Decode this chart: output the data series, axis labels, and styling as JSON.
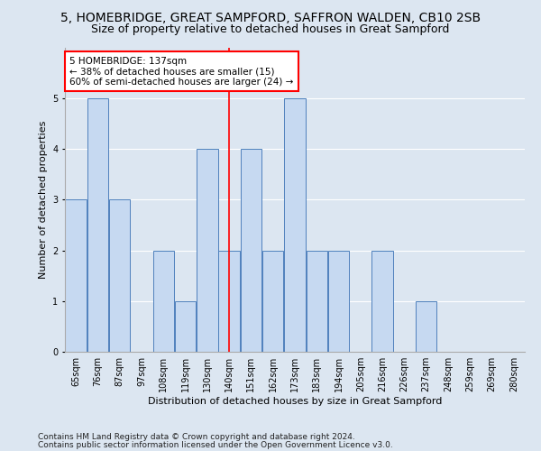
{
  "title": "5, HOMEBRIDGE, GREAT SAMPFORD, SAFFRON WALDEN, CB10 2SB",
  "subtitle": "Size of property relative to detached houses in Great Sampford",
  "xlabel": "Distribution of detached houses by size in Great Sampford",
  "ylabel": "Number of detached properties",
  "categories": [
    "65sqm",
    "76sqm",
    "87sqm",
    "97sqm",
    "108sqm",
    "119sqm",
    "130sqm",
    "140sqm",
    "151sqm",
    "162sqm",
    "173sqm",
    "183sqm",
    "194sqm",
    "205sqm",
    "216sqm",
    "226sqm",
    "237sqm",
    "248sqm",
    "259sqm",
    "269sqm",
    "280sqm"
  ],
  "values": [
    3,
    5,
    3,
    0,
    2,
    1,
    4,
    2,
    4,
    2,
    5,
    2,
    2,
    0,
    2,
    0,
    1,
    0,
    0,
    0,
    0
  ],
  "bar_color": "#c6d9f1",
  "bar_edge_color": "#4f81bd",
  "vline_x_index": 7,
  "vline_color": "red",
  "annotation_text": "5 HOMEBRIDGE: 137sqm\n← 38% of detached houses are smaller (15)\n60% of semi-detached houses are larger (24) →",
  "annotation_box_color": "white",
  "annotation_box_edge": "red",
  "ylim": [
    0,
    6
  ],
  "yticks": [
    0,
    1,
    2,
    3,
    4,
    5,
    6
  ],
  "footer1": "Contains HM Land Registry data © Crown copyright and database right 2024.",
  "footer2": "Contains public sector information licensed under the Open Government Licence v3.0.",
  "bg_color": "#dce6f1",
  "plot_bg_color": "#dce6f1",
  "title_fontsize": 10,
  "subtitle_fontsize": 9,
  "axis_label_fontsize": 8,
  "tick_fontsize": 7,
  "annotation_fontsize": 7.5,
  "footer_fontsize": 6.5
}
